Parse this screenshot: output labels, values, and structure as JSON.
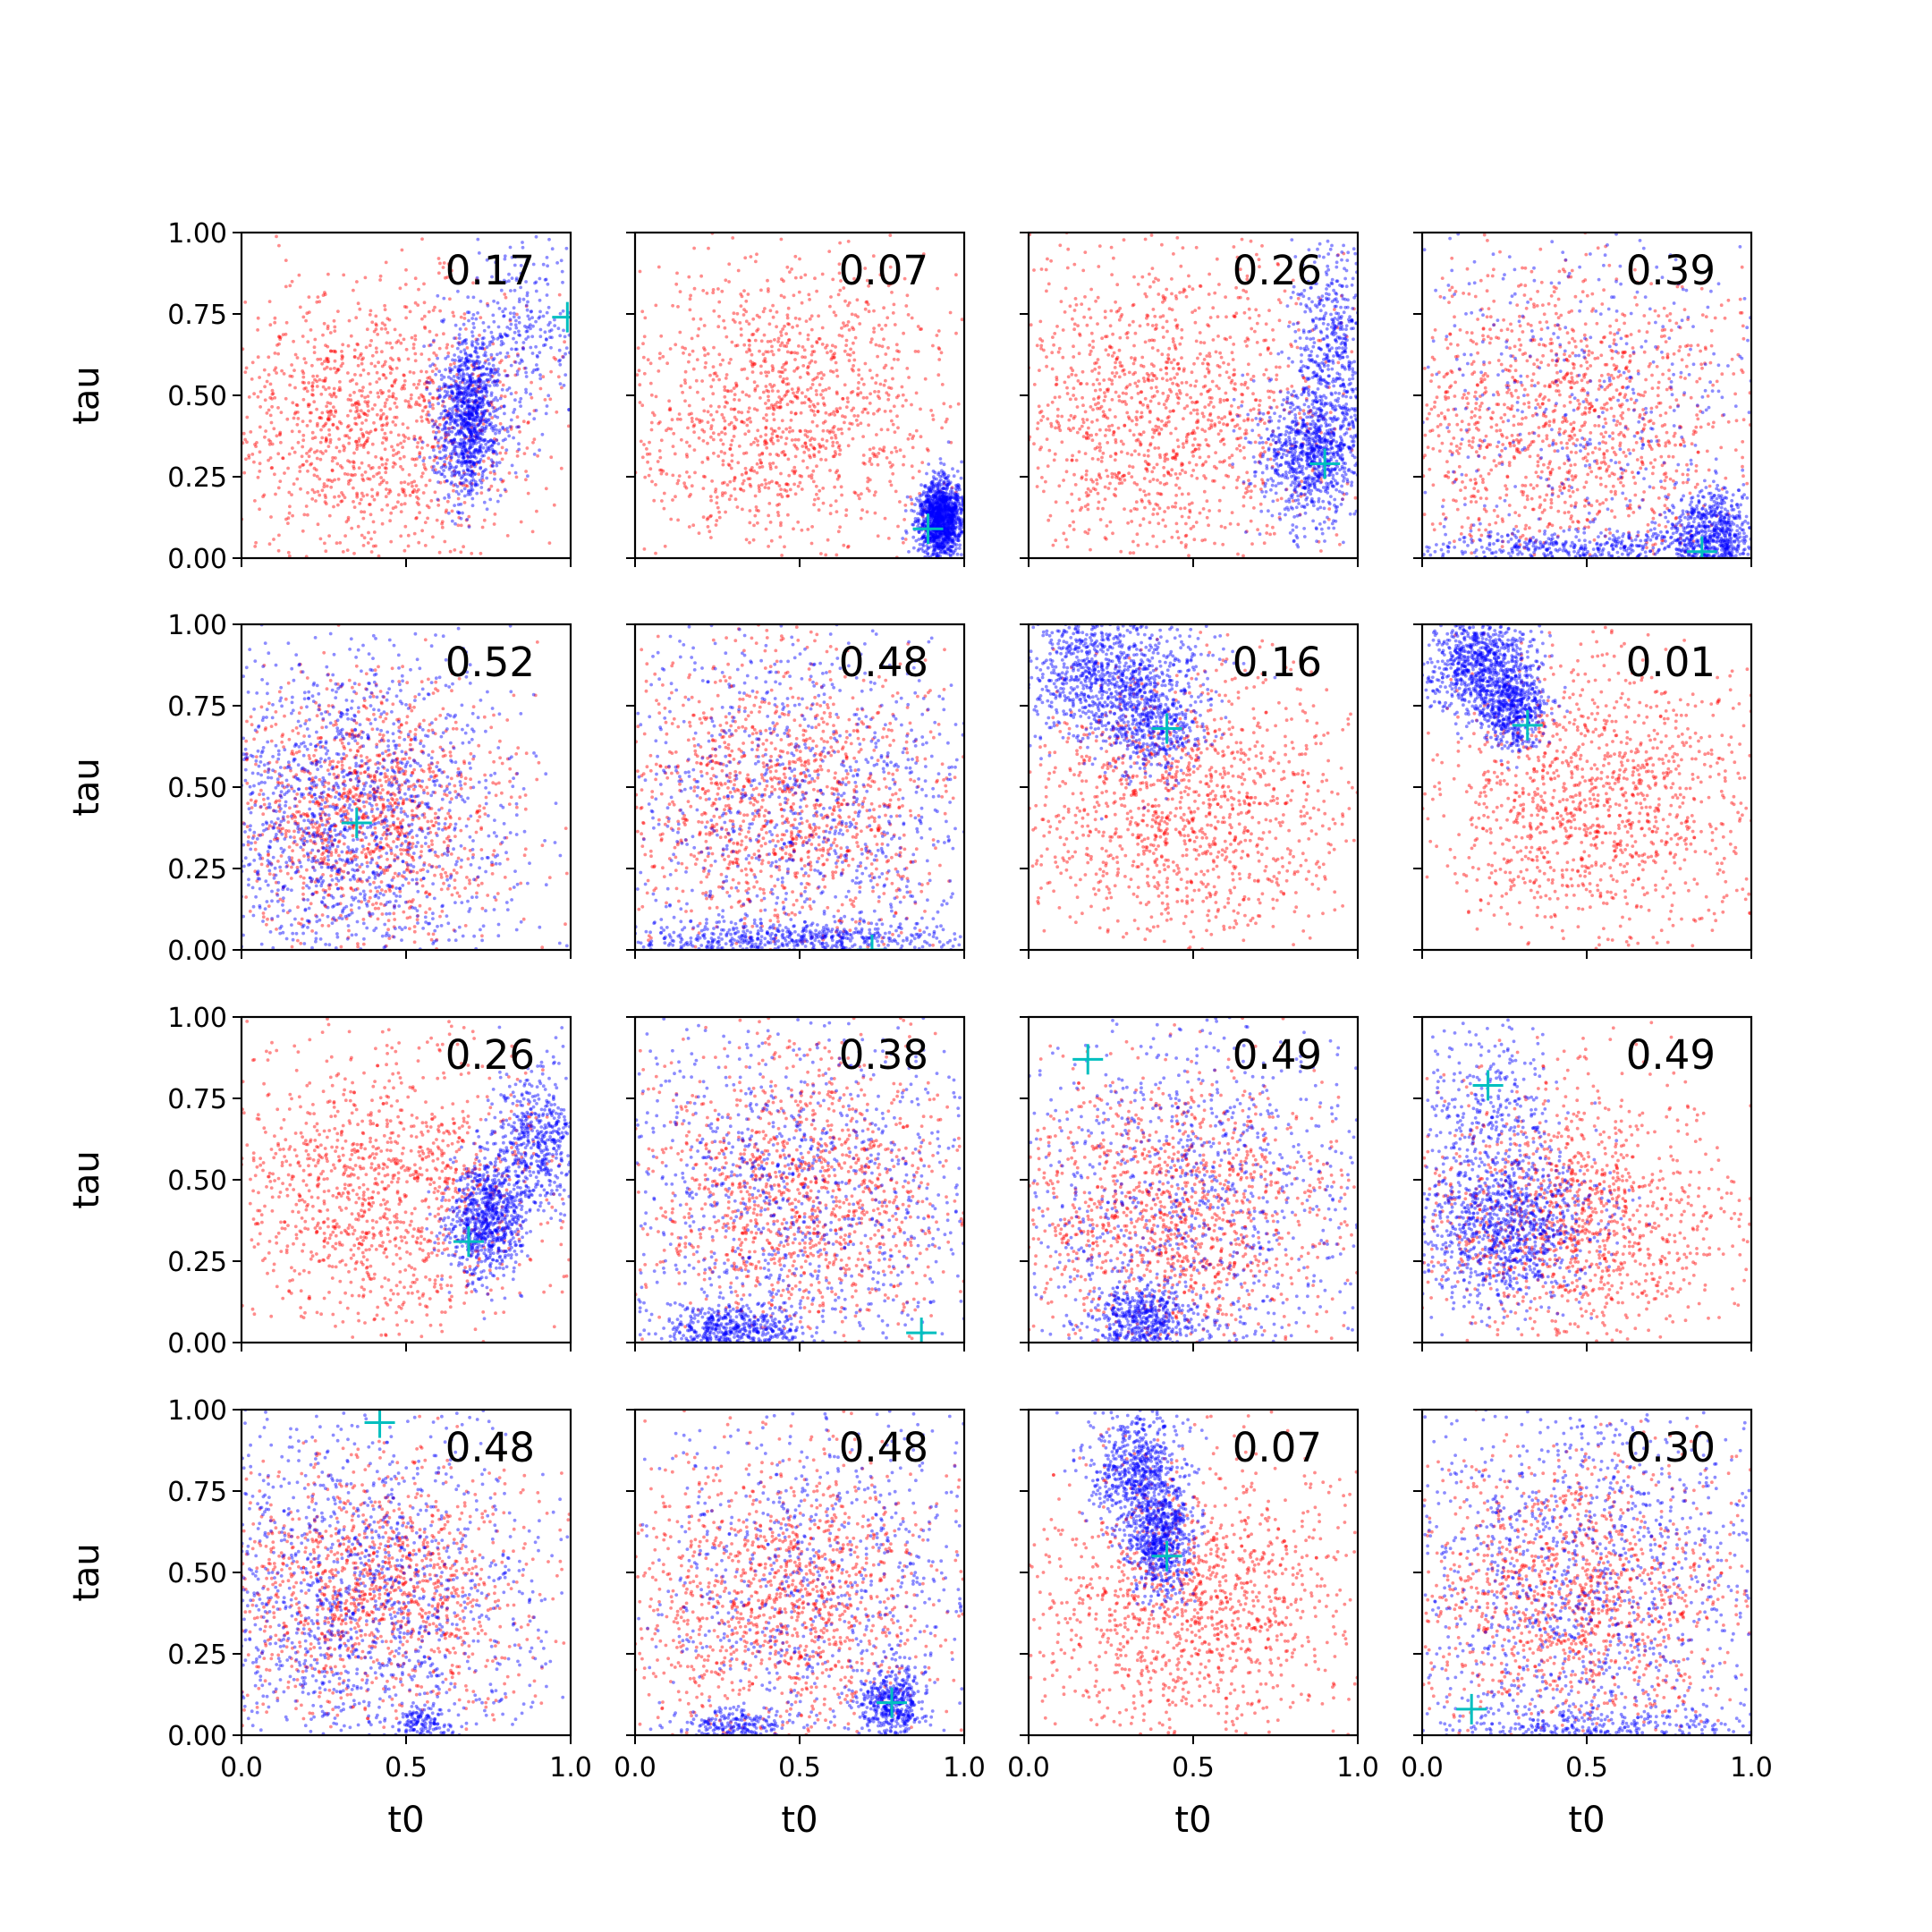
{
  "figure": {
    "xlabel": "t0",
    "ylabel": "tau",
    "xlim": [
      0,
      1
    ],
    "ylim": [
      0,
      1
    ],
    "x_ticks": [
      "0.0",
      "0.5",
      "1.0"
    ],
    "y_ticks": [
      "0.00",
      "0.25",
      "0.50",
      "0.75",
      "1.00"
    ],
    "colors": {
      "prior": "#ff0000",
      "posterior": "#0000ff",
      "truth_marker": "#00bfbf"
    },
    "grid": false,
    "legend": "none"
  },
  "chart_data": {
    "type": "scatter",
    "layout": "4x4 grid",
    "panels": [
      {
        "label": "0.17",
        "truth": [
          0.99,
          0.74
        ],
        "red": {
          "cx": 0.4,
          "cy": 0.42,
          "sx": 0.25,
          "sy": 0.22
        },
        "blue": [
          {
            "cx": 0.69,
            "cy": 0.43,
            "sx": 0.05,
            "sy": 0.12,
            "w": 0.78
          },
          {
            "cx": 0.86,
            "cy": 0.7,
            "sx": 0.1,
            "sy": 0.15,
            "w": 0.22
          }
        ]
      },
      {
        "label": "0.07",
        "truth": [
          0.89,
          0.09
        ],
        "red": {
          "cx": 0.45,
          "cy": 0.45,
          "sx": 0.26,
          "sy": 0.24
        },
        "blue": [
          {
            "cx": 0.93,
            "cy": 0.12,
            "sx": 0.035,
            "sy": 0.06,
            "w": 1.0
          }
        ]
      },
      {
        "label": "0.26",
        "truth": [
          0.9,
          0.29
        ],
        "red": {
          "cx": 0.4,
          "cy": 0.45,
          "sx": 0.27,
          "sy": 0.25
        },
        "blue": [
          {
            "cx": 0.86,
            "cy": 0.32,
            "sx": 0.08,
            "sy": 0.1,
            "w": 0.6
          },
          {
            "cx": 0.92,
            "cy": 0.62,
            "sx": 0.06,
            "sy": 0.2,
            "w": 0.4
          }
        ]
      },
      {
        "label": "0.39",
        "truth": [
          0.85,
          0.02
        ],
        "red": {
          "cx": 0.45,
          "cy": 0.42,
          "sx": 0.28,
          "sy": 0.25
        },
        "blue": [
          {
            "cx": 0.88,
            "cy": 0.08,
            "sx": 0.06,
            "sy": 0.07,
            "w": 0.4
          },
          {
            "cx": 0.5,
            "cy": 0.03,
            "sx": 0.3,
            "sy": 0.03,
            "w": 0.3
          },
          {
            "cx": 0.5,
            "cy": 0.5,
            "sx": 0.35,
            "sy": 0.35,
            "w": 0.3
          }
        ]
      },
      {
        "label": "0.52",
        "truth": [
          0.35,
          0.39
        ],
        "red": {
          "cx": 0.38,
          "cy": 0.42,
          "sx": 0.22,
          "sy": 0.2
        },
        "blue": [
          {
            "cx": 0.3,
            "cy": 0.4,
            "sx": 0.25,
            "sy": 0.3,
            "w": 1.0
          }
        ]
      },
      {
        "label": "0.48",
        "truth": [
          0.72,
          0.0
        ],
        "red": {
          "cx": 0.45,
          "cy": 0.45,
          "sx": 0.25,
          "sy": 0.23
        },
        "blue": [
          {
            "cx": 0.5,
            "cy": 0.03,
            "sx": 0.3,
            "sy": 0.03,
            "w": 0.35
          },
          {
            "cx": 0.5,
            "cy": 0.45,
            "sx": 0.3,
            "sy": 0.3,
            "w": 0.65
          }
        ]
      },
      {
        "label": "0.16",
        "truth": [
          0.42,
          0.68
        ],
        "red": {
          "cx": 0.48,
          "cy": 0.42,
          "sx": 0.25,
          "sy": 0.22
        },
        "blue": [
          {
            "cx": 0.25,
            "cy": 0.85,
            "sx": 0.14,
            "sy": 0.1,
            "w": 0.7
          },
          {
            "cx": 0.38,
            "cy": 0.68,
            "sx": 0.08,
            "sy": 0.08,
            "w": 0.3
          }
        ]
      },
      {
        "label": "0.01",
        "truth": [
          0.32,
          0.69
        ],
        "red": {
          "cx": 0.52,
          "cy": 0.45,
          "sx": 0.25,
          "sy": 0.22
        },
        "blue": [
          {
            "cx": 0.18,
            "cy": 0.88,
            "sx": 0.08,
            "sy": 0.08,
            "w": 0.6
          },
          {
            "cx": 0.28,
            "cy": 0.74,
            "sx": 0.05,
            "sy": 0.06,
            "w": 0.4
          }
        ]
      },
      {
        "label": "0.26",
        "truth": [
          0.69,
          0.31
        ],
        "red": {
          "cx": 0.42,
          "cy": 0.47,
          "sx": 0.25,
          "sy": 0.22
        },
        "blue": [
          {
            "cx": 0.74,
            "cy": 0.38,
            "sx": 0.06,
            "sy": 0.09,
            "w": 0.6
          },
          {
            "cx": 0.9,
            "cy": 0.62,
            "sx": 0.07,
            "sy": 0.12,
            "w": 0.4
          }
        ]
      },
      {
        "label": "0.38",
        "truth": [
          0.87,
          0.03
        ],
        "red": {
          "cx": 0.5,
          "cy": 0.45,
          "sx": 0.25,
          "sy": 0.23
        },
        "blue": [
          {
            "cx": 0.3,
            "cy": 0.04,
            "sx": 0.1,
            "sy": 0.04,
            "w": 0.3
          },
          {
            "cx": 0.5,
            "cy": 0.45,
            "sx": 0.32,
            "sy": 0.32,
            "w": 0.7
          }
        ]
      },
      {
        "label": "0.49",
        "truth": [
          0.18,
          0.87
        ],
        "red": {
          "cx": 0.45,
          "cy": 0.4,
          "sx": 0.25,
          "sy": 0.22
        },
        "blue": [
          {
            "cx": 0.35,
            "cy": 0.07,
            "sx": 0.08,
            "sy": 0.06,
            "w": 0.35
          },
          {
            "cx": 0.5,
            "cy": 0.45,
            "sx": 0.32,
            "sy": 0.3,
            "w": 0.65
          }
        ]
      },
      {
        "label": "0.49",
        "truth": [
          0.2,
          0.79
        ],
        "red": {
          "cx": 0.48,
          "cy": 0.38,
          "sx": 0.24,
          "sy": 0.2
        },
        "blue": [
          {
            "cx": 0.25,
            "cy": 0.35,
            "sx": 0.14,
            "sy": 0.12,
            "w": 0.75
          },
          {
            "cx": 0.2,
            "cy": 0.7,
            "sx": 0.1,
            "sy": 0.15,
            "w": 0.25
          }
        ]
      },
      {
        "label": "0.48",
        "truth": [
          0.42,
          0.96
        ],
        "red": {
          "cx": 0.4,
          "cy": 0.45,
          "sx": 0.24,
          "sy": 0.2
        },
        "blue": [
          {
            "cx": 0.35,
            "cy": 0.4,
            "sx": 0.3,
            "sy": 0.32,
            "w": 0.9
          },
          {
            "cx": 0.55,
            "cy": 0.04,
            "sx": 0.04,
            "sy": 0.03,
            "w": 0.1
          }
        ]
      },
      {
        "label": "0.48",
        "truth": [
          0.78,
          0.1
        ],
        "red": {
          "cx": 0.45,
          "cy": 0.42,
          "sx": 0.25,
          "sy": 0.22
        },
        "blue": [
          {
            "cx": 0.78,
            "cy": 0.1,
            "sx": 0.05,
            "sy": 0.06,
            "w": 0.35
          },
          {
            "cx": 0.3,
            "cy": 0.03,
            "sx": 0.08,
            "sy": 0.03,
            "w": 0.15
          },
          {
            "cx": 0.55,
            "cy": 0.5,
            "sx": 0.3,
            "sy": 0.3,
            "w": 0.5
          }
        ]
      },
      {
        "label": "0.07",
        "truth": [
          0.42,
          0.55
        ],
        "red": {
          "cx": 0.5,
          "cy": 0.4,
          "sx": 0.24,
          "sy": 0.22
        },
        "blue": [
          {
            "cx": 0.33,
            "cy": 0.82,
            "sx": 0.07,
            "sy": 0.1,
            "w": 0.5
          },
          {
            "cx": 0.4,
            "cy": 0.6,
            "sx": 0.05,
            "sy": 0.08,
            "w": 0.5
          }
        ]
      },
      {
        "label": "0.30",
        "truth": [
          0.15,
          0.08
        ],
        "red": {
          "cx": 0.45,
          "cy": 0.42,
          "sx": 0.25,
          "sy": 0.22
        },
        "blue": [
          {
            "cx": 0.5,
            "cy": 0.5,
            "sx": 0.32,
            "sy": 0.32,
            "w": 0.8
          },
          {
            "cx": 0.5,
            "cy": 0.03,
            "sx": 0.3,
            "sy": 0.03,
            "w": 0.2
          }
        ]
      }
    ]
  }
}
